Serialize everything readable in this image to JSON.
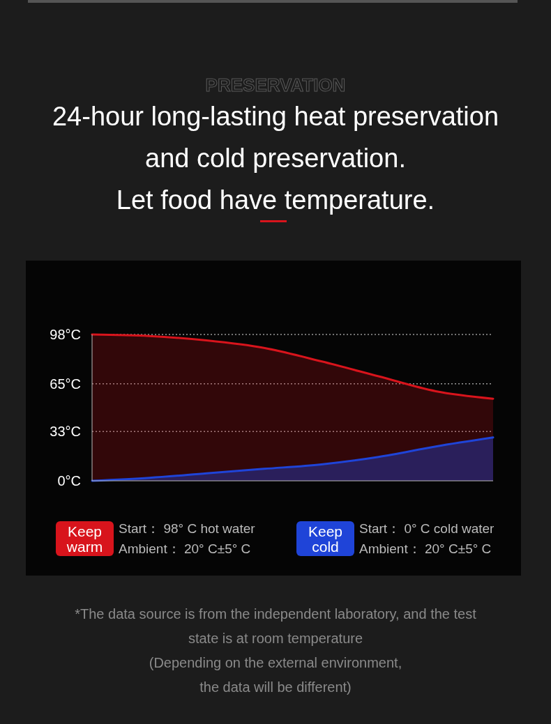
{
  "chart_data": {
    "type": "area",
    "subtitle": "PRESERVATION",
    "title": "24-hour long-lasting heat preservation and cold preservation. Let food have temperature.",
    "categories": [
      null,
      null,
      null,
      null,
      null,
      null,
      null,
      null
    ],
    "series": [
      {
        "name": "Keep warm",
        "color": "#d8141c",
        "values": [
          98,
          97,
          94,
          89,
          80,
          70,
          60,
          55
        ]
      },
      {
        "name": "Keep cold",
        "color": "#1f44d8",
        "values": [
          0,
          2,
          5,
          8,
          11,
          16,
          23,
          29
        ]
      }
    ],
    "ylim": [
      0,
      98
    ],
    "yticks": [
      {
        "value": 0,
        "label": "0°C"
      },
      {
        "value": 33,
        "label": "33°C"
      },
      {
        "value": 65,
        "label": "65°C"
      },
      {
        "value": 98,
        "label": "98°C"
      }
    ],
    "grid": "y",
    "legend": "bottom",
    "annotations": [
      "Start： 98° C hot water",
      "Ambient： 20° C±5° C",
      "Start： 0° C cold water",
      "Ambient： 20° C±5° C",
      "*The data source is from the independent laboratory, and the test state is at room temperature",
      "(Depending on the external environment, the data will be different)"
    ]
  }
}
